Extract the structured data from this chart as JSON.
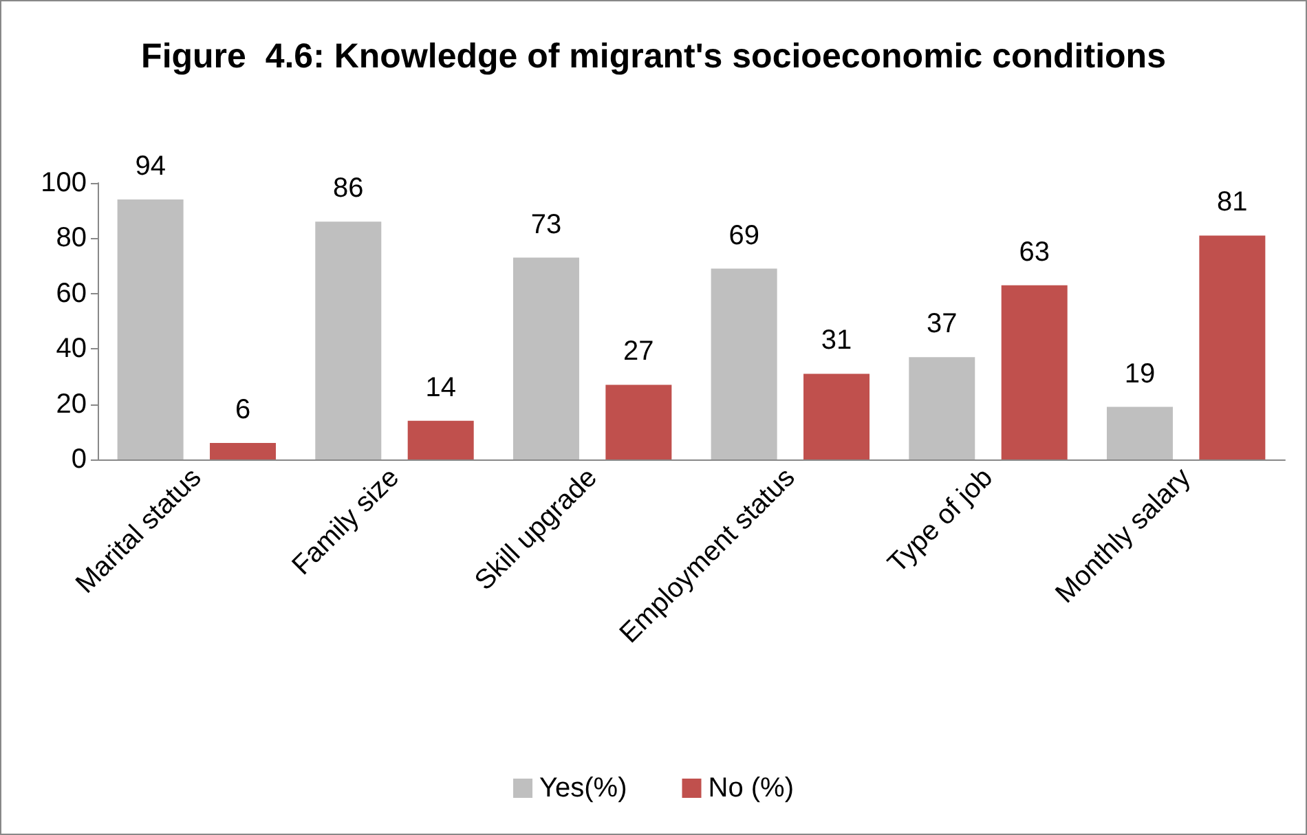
{
  "chart_data": {
    "type": "bar",
    "title": "Figure  4.6: Knowledge of migrant's socioeconomic conditions",
    "categories": [
      "Marital status",
      "Family size",
      "Skill upgrade",
      "Employment status",
      "Type of job",
      "Monthly salary"
    ],
    "series": [
      {
        "name": "Yes(%)",
        "color": "#bfbfbf",
        "values": [
          94,
          86,
          73,
          69,
          37,
          19
        ]
      },
      {
        "name": "No (%)",
        "color": "#c0504d",
        "values": [
          6,
          14,
          27,
          31,
          63,
          81
        ]
      }
    ],
    "ylim": [
      0,
      100
    ],
    "yticks": [
      0,
      20,
      40,
      60,
      80,
      100
    ],
    "grid": false,
    "legend": "bottom",
    "data_labels": true
  }
}
